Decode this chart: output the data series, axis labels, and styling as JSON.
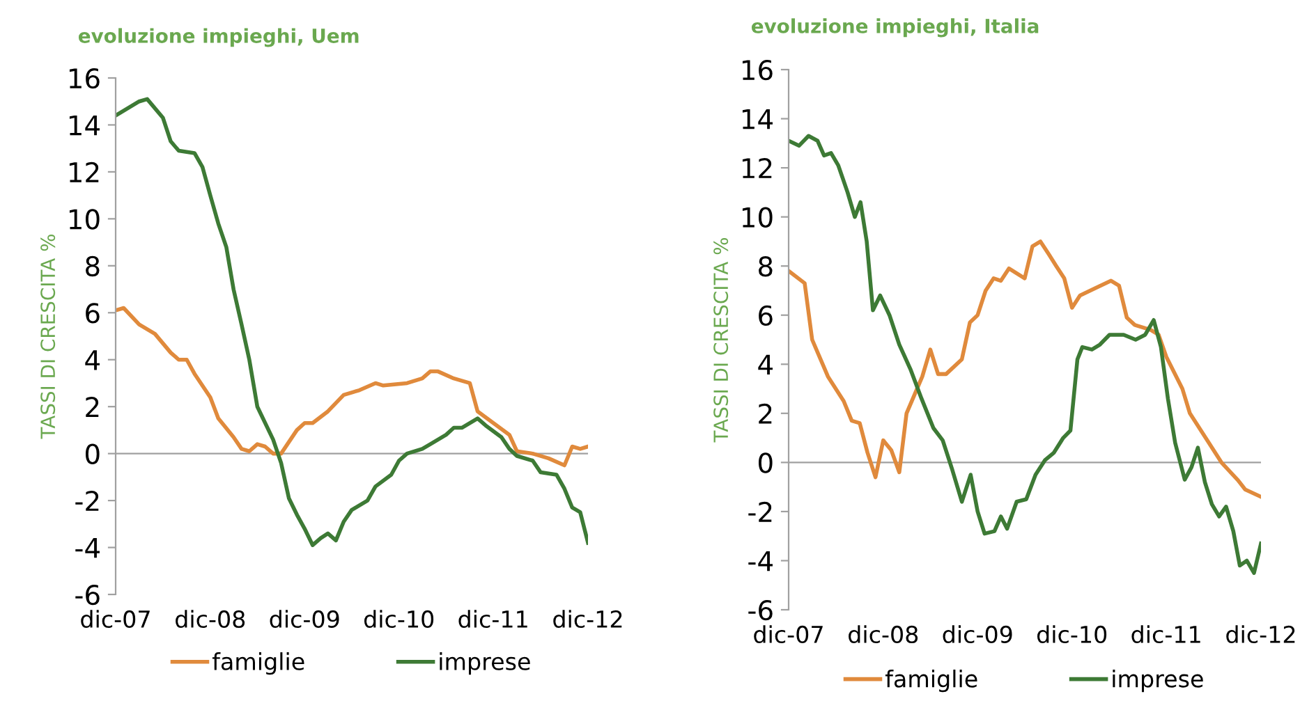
{
  "chart_data": [
    {
      "type": "line",
      "title": "evoluzione impieghi, Uem",
      "ylabel": "TASSI DI CRESCITA %",
      "ylim": [
        -6,
        16
      ],
      "yticks": [
        -6,
        -4,
        -2,
        0,
        2,
        4,
        6,
        8,
        10,
        12,
        14,
        16
      ],
      "xlim": [
        "2007-12",
        "2012-12"
      ],
      "xticks": [
        {
          "value": "2007-12",
          "label": "dic-07"
        },
        {
          "value": "2008-12",
          "label": "dic-08"
        },
        {
          "value": "2009-12",
          "label": "dic-09"
        },
        {
          "value": "2010-12",
          "label": "dic-10"
        },
        {
          "value": "2011-12",
          "label": "dic-11"
        },
        {
          "value": "2012-12",
          "label": "dic-12"
        }
      ],
      "legend": "bottom",
      "ref_lines": [
        {
          "axis": "y",
          "value": 0,
          "color": "#a0a0a0"
        }
      ],
      "series": [
        {
          "name": "famiglie",
          "color": "#e08a3c",
          "x": [
            "2007-12",
            "2008-01",
            "2008-03",
            "2008-05",
            "2008-07",
            "2008-08",
            "2008-09",
            "2008-10",
            "2008-12",
            "2009-01",
            "2009-03",
            "2009-04",
            "2009-05",
            "2009-06",
            "2009-07",
            "2009-08",
            "2009-09",
            "2009-11",
            "2009-12",
            "2010-01",
            "2010-03",
            "2010-05",
            "2010-07",
            "2010-09",
            "2010-10",
            "2011-01",
            "2011-03",
            "2011-04",
            "2011-05",
            "2011-07",
            "2011-09",
            "2011-10",
            "2011-12",
            "2012-02",
            "2012-03",
            "2012-05",
            "2012-07",
            "2012-09",
            "2012-10",
            "2012-11",
            "2012-12"
          ],
          "values": [
            6.1,
            6.2,
            5.5,
            5.1,
            4.3,
            4.0,
            4.0,
            3.4,
            2.4,
            1.5,
            0.7,
            0.2,
            0.1,
            0.4,
            0.3,
            0,
            0,
            1.0,
            1.3,
            1.3,
            1.8,
            2.5,
            2.7,
            3.0,
            2.9,
            3.0,
            3.2,
            3.5,
            3.5,
            3.2,
            3.0,
            1.8,
            1.3,
            0.8,
            0.1,
            0,
            -0.2,
            -0.5,
            0.3,
            0.2,
            0.3
          ]
        },
        {
          "name": "imprese",
          "color": "#3d7a35",
          "x": [
            "2007-12",
            "2008-03",
            "2008-04",
            "2008-06",
            "2008-07",
            "2008-08",
            "2008-10",
            "2008-11",
            "2008-12",
            "2009-01",
            "2009-02",
            "2009-03",
            "2009-04",
            "2009-05",
            "2009-06",
            "2009-08",
            "2009-09",
            "2009-10",
            "2009-11",
            "2009-12",
            "2010-01",
            "2010-02",
            "2010-03",
            "2010-04",
            "2010-05",
            "2010-06",
            "2010-08",
            "2010-09",
            "2010-11",
            "2010-12",
            "2011-01",
            "2011-03",
            "2011-04",
            "2011-06",
            "2011-07",
            "2011-08",
            "2011-10",
            "2011-11",
            "2012-01",
            "2012-02",
            "2012-03",
            "2012-05",
            "2012-06",
            "2012-08",
            "2012-09",
            "2012-10",
            "2012-11",
            "2012-12"
          ],
          "values": [
            14.4,
            15.0,
            15.1,
            14.3,
            13.3,
            12.9,
            12.8,
            12.2,
            11.0,
            9.8,
            8.8,
            7.0,
            5.5,
            4.0,
            2.0,
            0.6,
            -0.4,
            -1.9,
            -2.6,
            -3.2,
            -3.9,
            -3.6,
            -3.4,
            -3.7,
            -2.9,
            -2.4,
            -2.0,
            -1.4,
            -0.9,
            -0.3,
            0,
            0.2,
            0.4,
            0.8,
            1.1,
            1.1,
            1.5,
            1.2,
            0.7,
            0.2,
            -0.1,
            -0.3,
            -0.8,
            -0.9,
            -1.5,
            -2.3,
            -2.5,
            -3.8
          ]
        }
      ]
    },
    {
      "type": "line",
      "title": "evoluzione impieghi, Italia",
      "ylabel": "TASSI DI CRESCITA %",
      "ylim": [
        -6,
        16
      ],
      "yticks": [
        -6,
        -4,
        -2,
        0,
        2,
        4,
        6,
        8,
        10,
        12,
        14,
        16
      ],
      "xlim": [
        "2007-12",
        "2012-12"
      ],
      "xticks": [
        {
          "value": "2007-12",
          "label": "dic-07"
        },
        {
          "value": "2008-12",
          "label": "dic-08"
        },
        {
          "value": "2009-12",
          "label": "dic-09"
        },
        {
          "value": "2010-12",
          "label": "dic-10"
        },
        {
          "value": "2011-12",
          "label": "dic-11"
        },
        {
          "value": "2012-12",
          "label": "dic-12"
        }
      ],
      "legend": "bottom",
      "ref_lines": [
        {
          "axis": "y",
          "value": 0,
          "color": "#a0a0a0"
        }
      ],
      "series": [
        {
          "name": "famiglie",
          "color": "#e08a3c",
          "x": [
            "2007-12",
            "2008-02",
            "2008-03",
            "2008-05",
            "2008-07",
            "2008-08",
            "2008-09",
            "2008-10",
            "2008-11",
            "2008-12",
            "2009-01",
            "2009-02",
            "2009-03",
            "2009-05",
            "2009-06",
            "2009-07",
            "2009-08",
            "2009-10",
            "2009-11",
            "2009-12",
            "2010-01",
            "2010-02",
            "2010-03",
            "2010-04",
            "2010-06",
            "2010-07",
            "2010-08",
            "2010-09",
            "2010-10",
            "2010-11",
            "2010-12",
            "2011-01",
            "2011-03",
            "2011-05",
            "2011-06",
            "2011-07",
            "2011-08",
            "2011-10",
            "2011-11",
            "2011-12",
            "2012-02",
            "2012-03",
            "2012-05",
            "2012-07",
            "2012-09",
            "2012-10",
            "2012-12"
          ],
          "values": [
            7.8,
            7.3,
            5.0,
            3.5,
            2.5,
            1.7,
            1.6,
            0.4,
            -0.6,
            0.9,
            0.5,
            -0.4,
            2.0,
            3.5,
            4.6,
            3.6,
            3.6,
            4.2,
            5.7,
            6.0,
            7.0,
            7.5,
            7.4,
            7.9,
            7.5,
            8.8,
            9.0,
            8.5,
            8.0,
            7.5,
            6.3,
            6.8,
            7.1,
            7.4,
            7.2,
            5.9,
            5.6,
            5.4,
            5.2,
            4.3,
            3.0,
            2.0,
            1.0,
            0,
            -0.7,
            -1.1,
            -1.4
          ]
        },
        {
          "name": "imprese",
          "color": "#3d7a35",
          "x": [
            "2007-12-01",
            "2008-01-10",
            "2008-02-16",
            "2008-03-22",
            "2008-04-16",
            "2008-05-13",
            "2008-06-10",
            "2008-07-16",
            "2008-08-13",
            "2008-09-04",
            "2008-09-28",
            "2008-10-22",
            "2008-11-19",
            "2008-12-25",
            "2009-02-01",
            "2009-03-16",
            "2009-04-28",
            "2009-06-13",
            "2009-07-19",
            "2009-08-25",
            "2009-10-01",
            "2009-11-04",
            "2009-12-01",
            "2009-12-28",
            "2010-02-04",
            "2010-03-01",
            "2010-03-25",
            "2010-05-01",
            "2010-06-07",
            "2010-07-13",
            "2010-08-19",
            "2010-09-22",
            "2010-10-28",
            "2010-11-25",
            "2010-12-22",
            "2011-01-10",
            "2011-02-16",
            "2011-03-19",
            "2011-04-25",
            "2011-06-19",
            "2011-08-04",
            "2011-09-10",
            "2011-10-13",
            "2011-11-10",
            "2011-12-07",
            "2012-01-04",
            "2012-02-10",
            "2012-03-07",
            "2012-04-01",
            "2012-04-28",
            "2012-05-25",
            "2012-06-22",
            "2012-07-19",
            "2012-08-16",
            "2012-09-10",
            "2012-10-07",
            "2012-11-04",
            "2012-12-01"
          ],
          "values": [
            13.1,
            12.9,
            13.3,
            13.1,
            12.5,
            12.6,
            12.1,
            11.0,
            10.0,
            10.6,
            9.0,
            6.2,
            6.8,
            6.0,
            4.8,
            3.8,
            2.6,
            1.4,
            0.9,
            -0.3,
            -1.6,
            -0.5,
            -2.0,
            -2.9,
            -2.8,
            -2.2,
            -2.7,
            -1.6,
            -1.5,
            -0.5,
            0.1,
            0.4,
            1.0,
            1.3,
            4.2,
            4.7,
            4.6,
            4.8,
            5.2,
            5.2,
            5.0,
            5.2,
            5.8,
            4.7,
            2.6,
            0.8,
            -0.7,
            -0.2,
            0.6,
            -0.8,
            -1.7,
            -2.2,
            -1.8,
            -2.8,
            -4.2,
            -4.0,
            -4.5,
            -3.3
          ]
        }
      ]
    }
  ]
}
